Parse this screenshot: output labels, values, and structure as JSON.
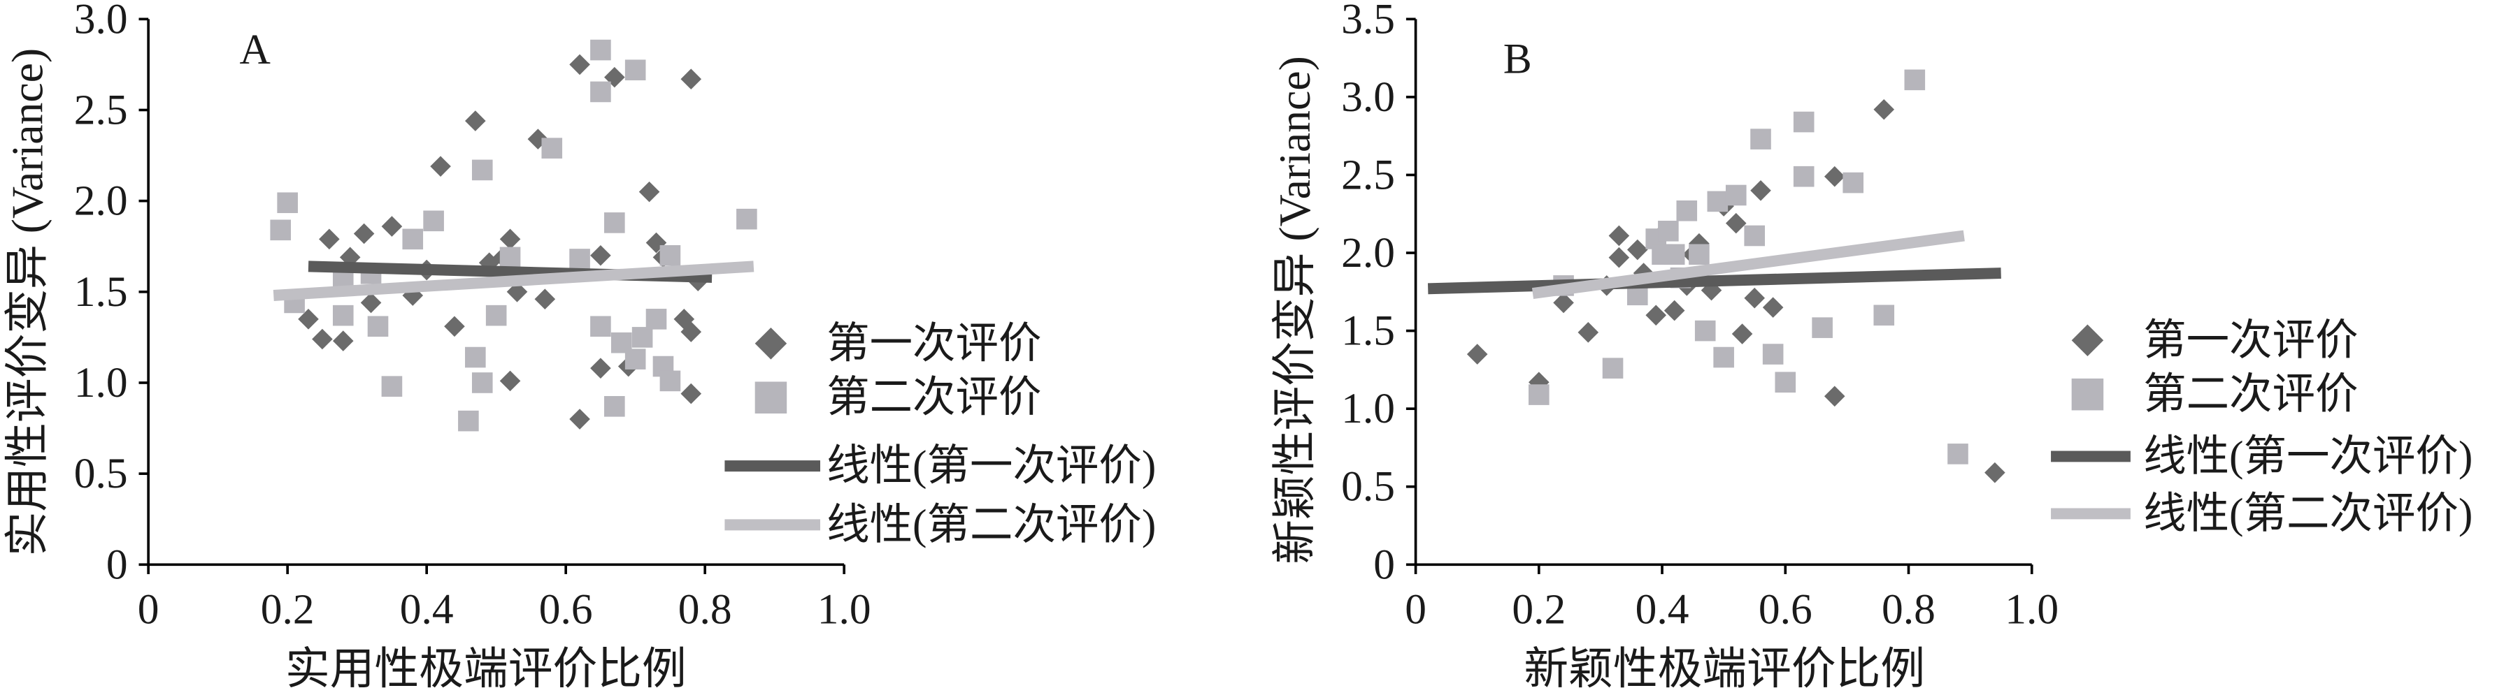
{
  "chart_data": [
    {
      "panel": "A",
      "type": "scatter",
      "xlabel": "实用性极端评价比例",
      "ylabel": "实用性评价变异 (Variance)",
      "xlim": [
        0,
        1.0
      ],
      "ylim": [
        0,
        3.0
      ],
      "x_ticks": [
        "0",
        "0.2",
        "0.4",
        "0.6",
        "0.8",
        "1.0"
      ],
      "y_ticks": [
        "0",
        "0.5",
        "1.0",
        "1.5",
        "2.0",
        "2.5",
        "3.0"
      ],
      "grid": false,
      "legend_position": "right",
      "series": [
        {
          "name": "第一次评价",
          "marker": "diamond",
          "color": "#6b6b6b",
          "points": [
            [
              0.23,
              1.35
            ],
            [
              0.26,
              1.79
            ],
            [
              0.25,
              1.24
            ],
            [
              0.28,
              1.23
            ],
            [
              0.29,
              1.69
            ],
            [
              0.31,
              1.82
            ],
            [
              0.32,
              1.44
            ],
            [
              0.35,
              1.86
            ],
            [
              0.38,
              1.48
            ],
            [
              0.4,
              1.62
            ],
            [
              0.42,
              2.19
            ],
            [
              0.44,
              1.31
            ],
            [
              0.47,
              2.44
            ],
            [
              0.49,
              1.66
            ],
            [
              0.51,
              1.69
            ],
            [
              0.52,
              1.79
            ],
            [
              0.52,
              1.01
            ],
            [
              0.53,
              1.5
            ],
            [
              0.56,
              2.34
            ],
            [
              0.57,
              1.46
            ],
            [
              0.62,
              2.75
            ],
            [
              0.62,
              0.8
            ],
            [
              0.65,
              1.7
            ],
            [
              0.65,
              1.08
            ],
            [
              0.67,
              2.68
            ],
            [
              0.69,
              1.09
            ],
            [
              0.72,
              2.05
            ],
            [
              0.73,
              1.77
            ],
            [
              0.74,
              1.69
            ],
            [
              0.77,
              1.35
            ],
            [
              0.78,
              1.28
            ],
            [
              0.78,
              0.94
            ],
            [
              0.78,
              2.67
            ],
            [
              0.79,
              1.56
            ]
          ]
        },
        {
          "name": "第二次评价",
          "marker": "square",
          "color": "#b6b5bb",
          "points": [
            [
              0.19,
              1.84
            ],
            [
              0.2,
              1.99
            ],
            [
              0.21,
              1.44
            ],
            [
              0.28,
              1.56
            ],
            [
              0.28,
              1.37
            ],
            [
              0.32,
              1.6
            ],
            [
              0.33,
              1.31
            ],
            [
              0.35,
              0.98
            ],
            [
              0.38,
              1.79
            ],
            [
              0.41,
              1.89
            ],
            [
              0.46,
              0.79
            ],
            [
              0.47,
              1.14
            ],
            [
              0.48,
              2.17
            ],
            [
              0.48,
              1.0
            ],
            [
              0.5,
              1.37
            ],
            [
              0.52,
              1.69
            ],
            [
              0.58,
              2.29
            ],
            [
              0.62,
              1.68
            ],
            [
              0.65,
              2.83
            ],
            [
              0.65,
              2.6
            ],
            [
              0.65,
              1.31
            ],
            [
              0.67,
              1.88
            ],
            [
              0.67,
              0.87
            ],
            [
              0.68,
              1.22
            ],
            [
              0.7,
              2.72
            ],
            [
              0.7,
              1.13
            ],
            [
              0.71,
              1.25
            ],
            [
              0.73,
              1.35
            ],
            [
              0.74,
              1.09
            ],
            [
              0.75,
              1.7
            ],
            [
              0.75,
              1.01
            ],
            [
              0.86,
              1.9
            ]
          ]
        }
      ],
      "trendlines": [
        {
          "name": "线性(第一次评价)",
          "color": "#5a5a5a",
          "x": [
            0.23,
            0.81
          ],
          "y": [
            1.64,
            1.58
          ]
        },
        {
          "name": "线性(第二次评价)",
          "color": "#c0bfc4",
          "x": [
            0.18,
            0.87
          ],
          "y": [
            1.48,
            1.64
          ]
        }
      ]
    },
    {
      "panel": "B",
      "type": "scatter",
      "xlabel": "新颖性极端评价比例",
      "ylabel": "新颖性评价变异 (Variance)",
      "xlim": [
        0,
        1.0
      ],
      "ylim": [
        0,
        3.5
      ],
      "x_ticks": [
        "0",
        "0.2",
        "0.4",
        "0.6",
        "0.8",
        "1.0"
      ],
      "y_ticks": [
        "0",
        "0.5",
        "1.0",
        "1.5",
        "2.0",
        "2.5",
        "3.0",
        "3.5"
      ],
      "grid": false,
      "legend_position": "right",
      "series": [
        {
          "name": "第一次评价",
          "marker": "diamond",
          "color": "#6b6b6b",
          "points": [
            [
              0.1,
              1.35
            ],
            [
              0.2,
              1.17
            ],
            [
              0.24,
              1.68
            ],
            [
              0.28,
              1.49
            ],
            [
              0.31,
              1.79
            ],
            [
              0.33,
              2.11
            ],
            [
              0.33,
              1.97
            ],
            [
              0.36,
              2.02
            ],
            [
              0.37,
              1.87
            ],
            [
              0.39,
              1.6
            ],
            [
              0.4,
              2.12
            ],
            [
              0.42,
              1.63
            ],
            [
              0.44,
              1.79
            ],
            [
              0.45,
              1.99
            ],
            [
              0.46,
              2.06
            ],
            [
              0.48,
              1.76
            ],
            [
              0.5,
              2.3
            ],
            [
              0.52,
              2.19
            ],
            [
              0.53,
              1.48
            ],
            [
              0.55,
              1.71
            ],
            [
              0.56,
              2.4
            ],
            [
              0.58,
              1.65
            ],
            [
              0.68,
              2.49
            ],
            [
              0.68,
              1.08
            ],
            [
              0.76,
              2.92
            ],
            [
              0.94,
              0.59
            ]
          ]
        },
        {
          "name": "第二次评价",
          "marker": "square",
          "color": "#b6b5bb",
          "points": [
            [
              0.2,
              1.09
            ],
            [
              0.24,
              1.79
            ],
            [
              0.32,
              1.26
            ],
            [
              0.36,
              1.73
            ],
            [
              0.39,
              2.09
            ],
            [
              0.4,
              1.99
            ],
            [
              0.41,
              2.14
            ],
            [
              0.42,
              1.99
            ],
            [
              0.43,
              1.84
            ],
            [
              0.44,
              2.27
            ],
            [
              0.46,
              1.99
            ],
            [
              0.47,
              1.5
            ],
            [
              0.49,
              2.33
            ],
            [
              0.5,
              1.33
            ],
            [
              0.52,
              2.37
            ],
            [
              0.55,
              2.11
            ],
            [
              0.56,
              2.73
            ],
            [
              0.58,
              1.35
            ],
            [
              0.6,
              1.17
            ],
            [
              0.63,
              2.84
            ],
            [
              0.63,
              2.49
            ],
            [
              0.66,
              1.52
            ],
            [
              0.71,
              2.45
            ],
            [
              0.76,
              1.6
            ],
            [
              0.81,
              3.11
            ],
            [
              0.88,
              0.71
            ]
          ]
        }
      ],
      "trendlines": [
        {
          "name": "线性(第一次评价)",
          "color": "#5a5a5a",
          "x": [
            0.02,
            0.95
          ],
          "y": [
            1.77,
            1.87
          ]
        },
        {
          "name": "线性(第二次评价)",
          "color": "#c0bfc4",
          "x": [
            0.19,
            0.89
          ],
          "y": [
            1.74,
            2.11
          ]
        }
      ]
    }
  ]
}
